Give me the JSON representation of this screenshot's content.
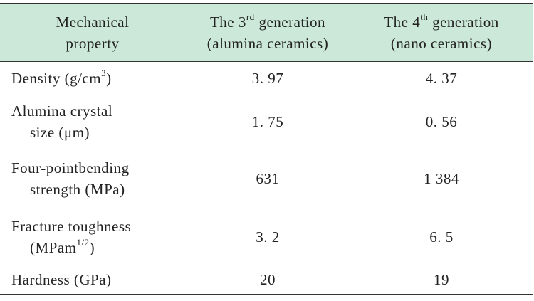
{
  "header": {
    "col1_line1": "Mechanical",
    "col1_line2": "property",
    "col2_line1_pre": "The 3",
    "col2_sup": "rd",
    "col2_line1_post": " generation",
    "col2_line2": "(alumina ceramics)",
    "col3_line1_pre": "The 4",
    "col3_sup": "th",
    "col3_line1_post": " generation",
    "col3_line2": "(nano ceramics)"
  },
  "rows": [
    {
      "prop_line1_pre": "Density (g/cm",
      "prop_sup": "3",
      "prop_line1_post": ")",
      "gen3": "3. 97",
      "gen4": "4. 37"
    },
    {
      "prop_line1": "Alumina crystal",
      "prop_line2": "size (μm)",
      "gen3": "1. 75",
      "gen4": "0. 56"
    },
    {
      "prop_line1": "Four-pointbending",
      "prop_line2": "strength (MPa)",
      "gen3": "631",
      "gen4": "1 384"
    },
    {
      "prop_line1": "Fracture toughness",
      "prop_line2_pre": "(MPam",
      "prop_line2_sup": "1/2",
      "prop_line2_post": ")",
      "gen3": "3. 2",
      "gen4": "6. 5"
    },
    {
      "prop_line1": "Hardness (GPa)",
      "gen3": "20",
      "gen4": "19"
    }
  ]
}
